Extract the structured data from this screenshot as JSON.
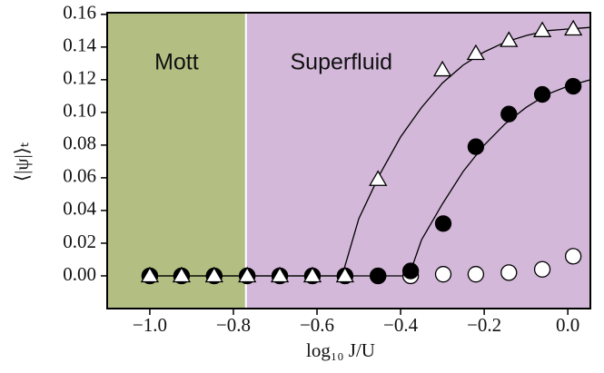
{
  "chart_data": {
    "type": "scatter",
    "x_label": "log₁₀ J/U",
    "y_label": "⟨|ψ|⟩ₜ",
    "xlim": [
      -1.102,
      0.054
    ],
    "ylim": [
      -0.02,
      0.161
    ],
    "xticks": [
      {
        "value": -1.0,
        "label": "−1.0"
      },
      {
        "value": -0.8,
        "label": "−0.8"
      },
      {
        "value": -0.6,
        "label": "−0.6"
      },
      {
        "value": -0.4,
        "label": "−0.4"
      },
      {
        "value": -0.2,
        "label": "−0.2"
      },
      {
        "value": 0,
        "label": "0.0"
      }
    ],
    "yticks": [
      {
        "value": 0,
        "label": "0.00"
      },
      {
        "value": 0.02,
        "label": "0.02"
      },
      {
        "value": 0.04,
        "label": "0.04"
      },
      {
        "value": 0.06,
        "label": "0.06"
      },
      {
        "value": 0.08,
        "label": "0.08"
      },
      {
        "value": 0.1,
        "label": "0.10"
      },
      {
        "value": 0.12,
        "label": "0.12"
      },
      {
        "value": 0.14,
        "label": "0.14"
      },
      {
        "value": 0.16,
        "label": "0.16"
      }
    ],
    "region_boundary": -0.77,
    "regions": [
      {
        "label": "Mott",
        "color": "#b3bf82"
      },
      {
        "label": "Superfluid",
        "color": "#d3b8d9"
      }
    ],
    "fits": [
      {
        "color": "#000000",
        "x": [
          -1.0,
          -0.54,
          -0.5,
          -0.45,
          -0.4,
          -0.35,
          -0.3,
          -0.25,
          -0.2,
          -0.15,
          -0.1,
          -0.05,
          0.0,
          0.054
        ],
        "values": [
          0,
          0,
          0.035,
          0.062,
          0.085,
          0.103,
          0.118,
          0.129,
          0.137,
          0.143,
          0.147,
          0.15,
          0.151,
          0.152
        ]
      },
      {
        "color": "#000000",
        "x": [
          -1.0,
          -0.38,
          -0.35,
          -0.3,
          -0.25,
          -0.2,
          -0.15,
          -0.1,
          -0.05,
          0.0,
          0.054
        ],
        "values": [
          0,
          0,
          0.022,
          0.044,
          0.064,
          0.08,
          0.093,
          0.103,
          0.111,
          0.116,
          0.12
        ]
      }
    ],
    "series": [
      {
        "marker": "circle",
        "color": "#ffffff",
        "x": [
          -1.0,
          -0.924,
          -0.846,
          -0.767,
          -0.689,
          -0.611,
          -0.533,
          -0.454,
          -0.376,
          -0.298,
          -0.22,
          -0.141,
          -0.061,
          0.013
        ],
        "values": [
          0,
          0,
          0,
          0,
          0,
          0,
          0,
          0,
          0,
          0.001,
          0.001,
          0.002,
          0.004,
          0.012
        ]
      },
      {
        "marker": "circle",
        "color": "#000000",
        "x": [
          -1.0,
          -0.924,
          -0.846,
          -0.767,
          -0.689,
          -0.611,
          -0.533,
          -0.454,
          -0.376,
          -0.298,
          -0.22,
          -0.141,
          -0.061,
          0.013
        ],
        "values": [
          0,
          0,
          0,
          0,
          0,
          0,
          0,
          0,
          0.003,
          0.032,
          0.079,
          0.099,
          0.111,
          0.116
        ]
      },
      {
        "marker": "triangle",
        "color": "#ffffff",
        "x": [
          -1.0,
          -0.924,
          -0.846,
          -0.767,
          -0.689,
          -0.611,
          -0.533,
          -0.454,
          -0.3,
          -0.22,
          -0.141,
          -0.061,
          0.013
        ],
        "values": [
          0,
          0,
          0,
          0,
          0,
          0,
          0,
          0.059,
          0.126,
          0.136,
          0.144,
          0.15,
          0.151
        ]
      }
    ]
  }
}
